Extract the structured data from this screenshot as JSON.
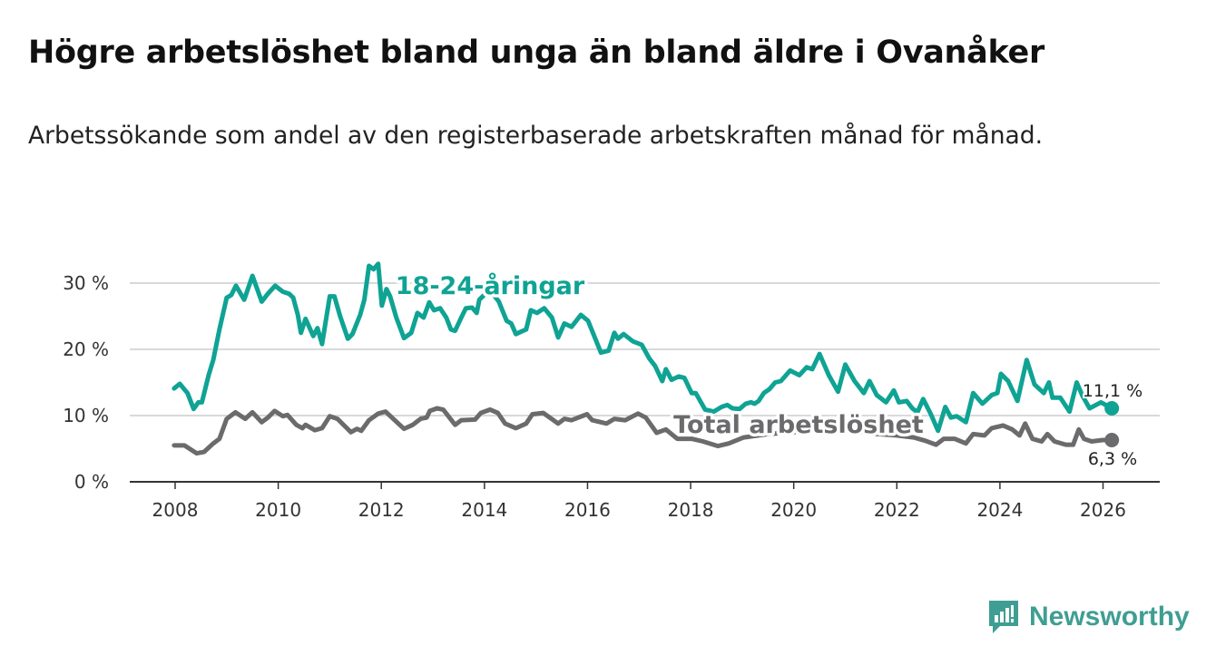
{
  "header": {
    "title": "Högre arbetslöshet bland unga än bland äldre i Ovanåker",
    "subtitle": "Arbetssökande som andel av den registerbaserade arbetskraften månad för månad."
  },
  "brand": {
    "name": "Newsworthy",
    "color": "#3f9e93"
  },
  "chart_data": {
    "type": "line",
    "title": "Högre arbetslöshet bland unga än bland äldre i Ovanåker",
    "xlabel": "",
    "ylabel": "",
    "xlim": [
      2007.12,
      2027.1
    ],
    "ylim": [
      0,
      30
    ],
    "grid": true,
    "x_ticks": [
      2008,
      2010,
      2012,
      2014,
      2016,
      2018,
      2020,
      2022,
      2024,
      2026
    ],
    "x_tick_labels": [
      "2008",
      "2010",
      "2012",
      "2014",
      "2016",
      "2018",
      "2020",
      "2022",
      "2024",
      "2026"
    ],
    "y_ticks": [
      0,
      10,
      20,
      30
    ],
    "y_tick_labels": [
      "0 %",
      "10 %",
      "20 %",
      "30 %"
    ],
    "series": [
      {
        "name": "18-24-åringar",
        "color": "#0fa394",
        "end_label": "11,1 %",
        "end_value": 11.1,
        "points": [
          [
            2007.98,
            14.1
          ],
          [
            2008.09,
            14.8
          ],
          [
            2008.24,
            13.4
          ],
          [
            2008.36,
            11.0
          ],
          [
            2008.45,
            12.0
          ],
          [
            2008.52,
            12.0
          ],
          [
            2008.65,
            16.1
          ],
          [
            2008.74,
            18.4
          ],
          [
            2008.86,
            23.0
          ],
          [
            2009.0,
            27.8
          ],
          [
            2009.09,
            28.2
          ],
          [
            2009.18,
            29.6
          ],
          [
            2009.34,
            27.5
          ],
          [
            2009.5,
            31.1
          ],
          [
            2009.68,
            27.2
          ],
          [
            2009.8,
            28.4
          ],
          [
            2009.94,
            29.6
          ],
          [
            2010.09,
            28.7
          ],
          [
            2010.21,
            28.4
          ],
          [
            2010.29,
            27.8
          ],
          [
            2010.38,
            25.2
          ],
          [
            2010.44,
            22.5
          ],
          [
            2010.53,
            24.6
          ],
          [
            2010.68,
            22.0
          ],
          [
            2010.76,
            23.2
          ],
          [
            2010.85,
            20.8
          ],
          [
            2011.0,
            28.0
          ],
          [
            2011.09,
            28.0
          ],
          [
            2011.2,
            25.0
          ],
          [
            2011.35,
            21.6
          ],
          [
            2011.44,
            22.3
          ],
          [
            2011.59,
            25.2
          ],
          [
            2011.67,
            27.5
          ],
          [
            2011.76,
            32.6
          ],
          [
            2011.85,
            32.1
          ],
          [
            2011.94,
            32.9
          ],
          [
            2012.01,
            26.6
          ],
          [
            2012.1,
            29.1
          ],
          [
            2012.17,
            28.0
          ],
          [
            2012.29,
            24.8
          ],
          [
            2012.44,
            21.7
          ],
          [
            2012.58,
            22.5
          ],
          [
            2012.7,
            25.5
          ],
          [
            2012.82,
            24.8
          ],
          [
            2012.93,
            27.1
          ],
          [
            2013.02,
            25.9
          ],
          [
            2013.14,
            26.2
          ],
          [
            2013.26,
            24.8
          ],
          [
            2013.35,
            23.0
          ],
          [
            2013.43,
            22.8
          ],
          [
            2013.55,
            24.8
          ],
          [
            2013.64,
            26.2
          ],
          [
            2013.76,
            26.3
          ],
          [
            2013.85,
            25.5
          ],
          [
            2013.9,
            27.5
          ],
          [
            2014.1,
            29.0
          ],
          [
            2014.28,
            27.2
          ],
          [
            2014.43,
            24.3
          ],
          [
            2014.52,
            23.9
          ],
          [
            2014.61,
            22.3
          ],
          [
            2014.72,
            22.7
          ],
          [
            2014.81,
            23.0
          ],
          [
            2014.9,
            25.9
          ],
          [
            2015.02,
            25.5
          ],
          [
            2015.16,
            26.2
          ],
          [
            2015.31,
            24.8
          ],
          [
            2015.43,
            21.8
          ],
          [
            2015.55,
            23.9
          ],
          [
            2015.69,
            23.4
          ],
          [
            2015.87,
            25.2
          ],
          [
            2016.01,
            24.3
          ],
          [
            2016.26,
            19.5
          ],
          [
            2016.41,
            19.8
          ],
          [
            2016.52,
            22.5
          ],
          [
            2016.59,
            21.6
          ],
          [
            2016.7,
            22.3
          ],
          [
            2016.88,
            21.2
          ],
          [
            2017.05,
            20.7
          ],
          [
            2017.2,
            18.6
          ],
          [
            2017.31,
            17.5
          ],
          [
            2017.45,
            15.2
          ],
          [
            2017.52,
            17.0
          ],
          [
            2017.63,
            15.4
          ],
          [
            2017.77,
            15.9
          ],
          [
            2017.88,
            15.7
          ],
          [
            2018.02,
            13.4
          ],
          [
            2018.1,
            13.4
          ],
          [
            2018.28,
            10.9
          ],
          [
            2018.45,
            10.6
          ],
          [
            2018.6,
            11.3
          ],
          [
            2018.71,
            11.6
          ],
          [
            2018.81,
            11.1
          ],
          [
            2018.95,
            11.0
          ],
          [
            2019.07,
            11.8
          ],
          [
            2019.17,
            12.0
          ],
          [
            2019.24,
            11.8
          ],
          [
            2019.32,
            12.2
          ],
          [
            2019.42,
            13.4
          ],
          [
            2019.53,
            14.0
          ],
          [
            2019.64,
            15.0
          ],
          [
            2019.75,
            15.2
          ],
          [
            2019.93,
            16.8
          ],
          [
            2020.11,
            16.1
          ],
          [
            2020.25,
            17.3
          ],
          [
            2020.36,
            17.0
          ],
          [
            2020.5,
            19.3
          ],
          [
            2020.68,
            16.1
          ],
          [
            2020.86,
            13.6
          ],
          [
            2021.0,
            17.7
          ],
          [
            2021.18,
            15.2
          ],
          [
            2021.36,
            13.4
          ],
          [
            2021.47,
            15.2
          ],
          [
            2021.61,
            13.1
          ],
          [
            2021.79,
            12.0
          ],
          [
            2021.94,
            13.8
          ],
          [
            2022.04,
            12.0
          ],
          [
            2022.19,
            12.2
          ],
          [
            2022.3,
            11.1
          ],
          [
            2022.4,
            10.5
          ],
          [
            2022.51,
            12.5
          ],
          [
            2022.66,
            10.2
          ],
          [
            2022.8,
            7.7
          ],
          [
            2022.94,
            11.3
          ],
          [
            2023.05,
            9.7
          ],
          [
            2023.16,
            9.9
          ],
          [
            2023.34,
            9.0
          ],
          [
            2023.48,
            13.4
          ],
          [
            2023.66,
            11.8
          ],
          [
            2023.84,
            13.1
          ],
          [
            2023.95,
            13.4
          ],
          [
            2024.02,
            16.3
          ],
          [
            2024.16,
            15.2
          ],
          [
            2024.34,
            12.2
          ],
          [
            2024.52,
            18.4
          ],
          [
            2024.67,
            14.7
          ],
          [
            2024.85,
            13.4
          ],
          [
            2024.95,
            15.0
          ],
          [
            2025.02,
            12.7
          ],
          [
            2025.17,
            12.7
          ],
          [
            2025.35,
            10.6
          ],
          [
            2025.49,
            15.0
          ],
          [
            2025.6,
            13.0
          ],
          [
            2025.74,
            11.1
          ],
          [
            2025.96,
            12.0
          ],
          [
            2026.17,
            11.1
          ]
        ]
      },
      {
        "name": "Total arbetslöshet",
        "color": "#6b6b6d",
        "end_label": "6,3 %",
        "end_value": 6.3,
        "points": [
          [
            2007.98,
            5.5
          ],
          [
            2008.18,
            5.5
          ],
          [
            2008.42,
            4.3
          ],
          [
            2008.56,
            4.5
          ],
          [
            2008.74,
            5.8
          ],
          [
            2008.86,
            6.5
          ],
          [
            2009.0,
            9.5
          ],
          [
            2009.17,
            10.5
          ],
          [
            2009.36,
            9.5
          ],
          [
            2009.5,
            10.5
          ],
          [
            2009.68,
            9.0
          ],
          [
            2009.8,
            9.7
          ],
          [
            2009.93,
            10.7
          ],
          [
            2010.09,
            9.9
          ],
          [
            2010.18,
            10.1
          ],
          [
            2010.35,
            8.6
          ],
          [
            2010.47,
            8.1
          ],
          [
            2010.53,
            8.6
          ],
          [
            2010.71,
            7.8
          ],
          [
            2010.85,
            8.1
          ],
          [
            2011.0,
            9.9
          ],
          [
            2011.15,
            9.5
          ],
          [
            2011.41,
            7.5
          ],
          [
            2011.53,
            8.0
          ],
          [
            2011.61,
            7.7
          ],
          [
            2011.76,
            9.3
          ],
          [
            2011.94,
            10.3
          ],
          [
            2012.08,
            10.6
          ],
          [
            2012.23,
            9.5
          ],
          [
            2012.44,
            8.0
          ],
          [
            2012.61,
            8.6
          ],
          [
            2012.76,
            9.5
          ],
          [
            2012.88,
            9.7
          ],
          [
            2012.94,
            10.7
          ],
          [
            2013.08,
            11.1
          ],
          [
            2013.2,
            10.9
          ],
          [
            2013.43,
            8.6
          ],
          [
            2013.55,
            9.3
          ],
          [
            2013.82,
            9.4
          ],
          [
            2013.93,
            10.4
          ],
          [
            2014.11,
            10.9
          ],
          [
            2014.26,
            10.4
          ],
          [
            2014.4,
            8.8
          ],
          [
            2014.61,
            8.1
          ],
          [
            2014.81,
            8.8
          ],
          [
            2014.93,
            10.2
          ],
          [
            2015.14,
            10.4
          ],
          [
            2015.43,
            8.8
          ],
          [
            2015.55,
            9.5
          ],
          [
            2015.69,
            9.3
          ],
          [
            2015.99,
            10.2
          ],
          [
            2016.09,
            9.3
          ],
          [
            2016.37,
            8.8
          ],
          [
            2016.52,
            9.5
          ],
          [
            2016.73,
            9.3
          ],
          [
            2016.98,
            10.3
          ],
          [
            2017.13,
            9.7
          ],
          [
            2017.34,
            7.4
          ],
          [
            2017.52,
            7.9
          ],
          [
            2017.74,
            6.5
          ],
          [
            2018.02,
            6.5
          ],
          [
            2018.24,
            6.1
          ],
          [
            2018.53,
            5.4
          ],
          [
            2018.74,
            5.8
          ],
          [
            2019.03,
            6.7
          ],
          [
            2019.5,
            7.2
          ],
          [
            2020.0,
            7.5
          ],
          [
            2020.5,
            8.0
          ],
          [
            2021.0,
            7.8
          ],
          [
            2021.5,
            7.3
          ],
          [
            2022.0,
            7.0
          ],
          [
            2022.33,
            6.7
          ],
          [
            2022.55,
            6.2
          ],
          [
            2022.76,
            5.6
          ],
          [
            2022.91,
            6.5
          ],
          [
            2023.12,
            6.5
          ],
          [
            2023.34,
            5.8
          ],
          [
            2023.48,
            7.2
          ],
          [
            2023.7,
            7.0
          ],
          [
            2023.84,
            8.1
          ],
          [
            2024.06,
            8.5
          ],
          [
            2024.24,
            7.9
          ],
          [
            2024.38,
            7.0
          ],
          [
            2024.49,
            8.8
          ],
          [
            2024.63,
            6.5
          ],
          [
            2024.81,
            6.1
          ],
          [
            2024.92,
            7.2
          ],
          [
            2025.06,
            6.1
          ],
          [
            2025.28,
            5.6
          ],
          [
            2025.42,
            5.6
          ],
          [
            2025.53,
            7.9
          ],
          [
            2025.63,
            6.5
          ],
          [
            2025.78,
            6.1
          ],
          [
            2025.99,
            6.3
          ],
          [
            2026.17,
            6.3
          ]
        ]
      }
    ]
  }
}
